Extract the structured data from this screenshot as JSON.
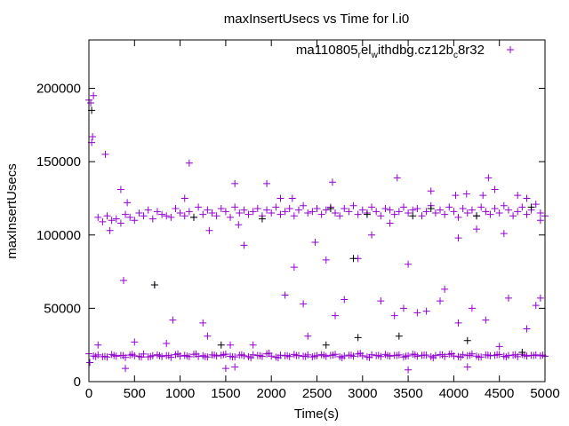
{
  "chart_data": {
    "type": "scatter",
    "title": "maxInsertUsecs vs Time for l.i0",
    "xlabel": "Time(s)",
    "ylabel": "maxInsertUsecs",
    "xlim": [
      0,
      5000
    ],
    "ylim": [
      0,
      233000
    ],
    "xticks": [
      "0",
      "500",
      "1000",
      "1500",
      "2000",
      "2500",
      "3000",
      "3500",
      "4000",
      "4500",
      "5000"
    ],
    "yticks": [
      "0",
      "50000",
      "100000",
      "150000",
      "200000"
    ],
    "grid": false,
    "legend": {
      "label": "ma110805_rel_withdbg.cz12b_c8r32",
      "label_parts": [
        "ma110805",
        "r",
        "el",
        "w",
        "ithdbg.cz12b",
        "c",
        "8r32"
      ],
      "position": "top-right"
    },
    "series_color": "#9400d3",
    "secondary_color": "#000000",
    "band_x_step": 50,
    "band_low": [
      19000,
      17500,
      18200,
      17000,
      16800,
      18500,
      17300,
      17900,
      16500,
      18100,
      17600,
      17200,
      18800,
      16900,
      17700,
      18300,
      17100,
      17800,
      16600,
      18400,
      17400,
      17900,
      17000,
      18600,
      17200,
      17700,
      16800,
      18200,
      17500,
      17900,
      18700,
      17300,
      16900,
      18100,
      17600,
      17000,
      18300,
      17800,
      17200,
      18900,
      17400,
      16700,
      18000,
      17600,
      17100,
      18500,
      17800,
      17300,
      18200,
      16900,
      17700,
      18400,
      17200,
      17900,
      18600,
      17000,
      17500,
      18100,
      17300,
      18800,
      17600,
      16900,
      18300,
      17700,
      17100,
      18500,
      17400,
      17900,
      18200,
      16800,
      17600,
      18700,
      17300,
      17900,
      18100,
      17000,
      17800,
      18400,
      17200,
      18600,
      17500,
      17100,
      18300,
      17700,
      18900,
      17400,
      16800,
      18200,
      17600,
      17900,
      18500,
      17300,
      17800,
      18100,
      17000,
      18600,
      17400,
      17900,
      18200,
      17600,
      17300
    ],
    "band_high": [
      null,
      null,
      112000,
      109000,
      113000,
      110000,
      111000,
      108000,
      114000,
      112000,
      110000,
      115000,
      113000,
      117000,
      111000,
      116000,
      114000,
      113000,
      112000,
      118000,
      115000,
      113000,
      116000,
      112000,
      119000,
      114000,
      117000,
      115000,
      113000,
      118000,
      116000,
      112000,
      119000,
      115000,
      117000,
      114000,
      116000,
      118000,
      113000,
      117000,
      115000,
      119000,
      114000,
      116000,
      118000,
      113000,
      117000,
      120000,
      115000,
      116000,
      118000,
      114000,
      117000,
      119000,
      115000,
      113000,
      118000,
      116000,
      120000,
      114000,
      117000,
      115000,
      119000,
      116000,
      113000,
      118000,
      117000,
      114000,
      116000,
      119000,
      115000,
      117000,
      118000,
      113000,
      116000,
      120000,
      115000,
      117000,
      114000,
      119000,
      116000,
      112000,
      118000,
      115000,
      117000,
      113000,
      119000,
      116000,
      114000,
      118000,
      115000,
      120000,
      117000,
      113000,
      116000,
      119000,
      114000,
      117000,
      121000,
      115000,
      113000
    ],
    "outliers": [
      [
        0,
        192000
      ],
      [
        20,
        190000
      ],
      [
        50,
        195000
      ],
      [
        30,
        163000
      ],
      [
        40,
        167000
      ],
      [
        180,
        155000
      ],
      [
        350,
        131000
      ],
      [
        420,
        122000
      ],
      [
        1100,
        149000
      ],
      [
        1050,
        125000
      ],
      [
        1600,
        135000
      ],
      [
        1950,
        135000
      ],
      [
        2230,
        125000
      ],
      [
        2100,
        125000
      ],
      [
        2670,
        136000
      ],
      [
        3380,
        139000
      ],
      [
        3750,
        130000
      ],
      [
        4020,
        127000
      ],
      [
        4140,
        128000
      ],
      [
        4320,
        127000
      ],
      [
        4380,
        139000
      ],
      [
        4450,
        131000
      ],
      [
        4700,
        127000
      ],
      [
        4800,
        125000
      ],
      [
        230,
        103000
      ],
      [
        1320,
        103000
      ],
      [
        1700,
        93000
      ],
      [
        1640,
        107000
      ],
      [
        2480,
        95000
      ],
      [
        3100,
        100000
      ],
      [
        3300,
        108000
      ],
      [
        4250,
        104000
      ],
      [
        4550,
        101000
      ],
      [
        4950,
        110000
      ],
      [
        4050,
        98000
      ],
      [
        380,
        69000
      ],
      [
        720,
        66000
      ],
      [
        920,
        42000
      ],
      [
        1250,
        40000
      ],
      [
        1300,
        31000
      ],
      [
        2150,
        59000
      ],
      [
        2250,
        78000
      ],
      [
        2350,
        53000
      ],
      [
        2600,
        83000
      ],
      [
        2700,
        45000
      ],
      [
        2800,
        56000
      ],
      [
        2950,
        84000
      ],
      [
        3200,
        55000
      ],
      [
        3350,
        45000
      ],
      [
        3450,
        50000
      ],
      [
        3500,
        80000
      ],
      [
        3600,
        47000
      ],
      [
        3700,
        48000
      ],
      [
        3850,
        55000
      ],
      [
        3900,
        63000
      ],
      [
        4050,
        40000
      ],
      [
        4200,
        50000
      ],
      [
        4350,
        42000
      ],
      [
        4600,
        57000
      ],
      [
        4800,
        36000
      ],
      [
        4900,
        52000
      ],
      [
        4950,
        57000
      ],
      [
        100,
        25000
      ],
      [
        500,
        27000
      ],
      [
        850,
        26000
      ],
      [
        1550,
        25000
      ],
      [
        1800,
        25000
      ],
      [
        2400,
        31000
      ],
      [
        4500,
        24000
      ],
      [
        10,
        13000
      ],
      [
        400,
        9000
      ],
      [
        1500,
        9000
      ],
      [
        1600,
        10000
      ],
      [
        3500,
        8000
      ],
      [
        4150,
        10000
      ]
    ],
    "outliers_black": [
      [
        30,
        185000
      ],
      [
        720,
        66000
      ],
      [
        1450,
        25000
      ],
      [
        2600,
        25000
      ],
      [
        2950,
        30000
      ],
      [
        3400,
        31000
      ],
      [
        4150,
        28000
      ],
      [
        4750,
        20000
      ],
      [
        1150,
        112000
      ],
      [
        2650,
        118000
      ],
      [
        3050,
        114000
      ],
      [
        3750,
        118000
      ],
      [
        4250,
        113000
      ],
      [
        4850,
        119000
      ],
      [
        3550,
        113000
      ],
      [
        1900,
        111000
      ],
      [
        2900,
        84000
      ]
    ]
  }
}
